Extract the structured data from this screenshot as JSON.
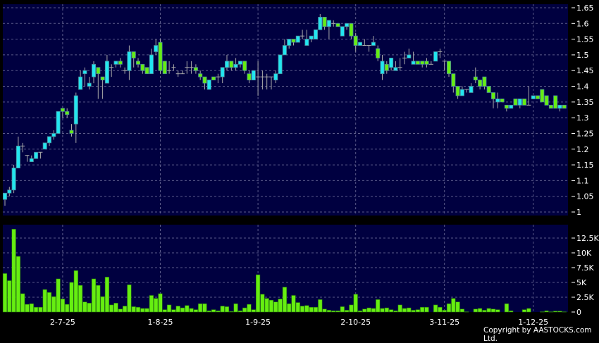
{
  "chart_data": {
    "type": "candlestick",
    "colors": {
      "up": "#22e6f0",
      "down": "#66ee11",
      "volume": "#66ee11",
      "background": "#000040",
      "grid": "#5a5a8a",
      "doji": "#aaaaaa"
    },
    "price_axis": {
      "ylim": [
        1.0,
        1.65
      ],
      "ticks": [
        "1",
        "1.05",
        "1.1",
        "1.15",
        "1.2",
        "1.25",
        "1.3",
        "1.35",
        "1.4",
        "1.45",
        "1.5",
        "1.55",
        "1.6",
        "1.65"
      ],
      "position": "right",
      "grid": true
    },
    "volume_axis": {
      "ylim": [
        0,
        14500
      ],
      "ticks": [
        {
          "value": 0,
          "label": "0"
        },
        {
          "value": 2500,
          "label": "2.5K"
        },
        {
          "value": 5000,
          "label": "5K"
        },
        {
          "value": 7500,
          "label": "7.5K"
        },
        {
          "value": 10000,
          "label": "10K"
        },
        {
          "value": 12500,
          "label": "12.5K"
        }
      ],
      "position": "right",
      "grid": true
    },
    "x_labels": [
      {
        "label": "2-7-25",
        "index": 13
      },
      {
        "label": "1-8-25",
        "index": 35
      },
      {
        "label": "1-9-25",
        "index": 57
      },
      {
        "label": "2-10-25",
        "index": 79
      },
      {
        "label": "3-11-25",
        "index": 99
      },
      {
        "label": "1-12-25",
        "index": 119
      }
    ],
    "ohlc": [
      [
        1.04,
        1.06,
        1.06,
        1.02
      ],
      [
        1.06,
        1.07,
        1.08,
        1.05
      ],
      [
        1.07,
        1.14,
        1.15,
        1.06
      ],
      [
        1.14,
        1.21,
        1.24,
        1.14
      ],
      [
        1.21,
        1.21,
        1.22,
        1.19
      ],
      [
        1.18,
        1.18,
        1.18,
        1.16
      ],
      [
        1.16,
        1.17,
        1.18,
        1.16
      ],
      [
        1.17,
        1.19,
        1.19,
        1.17
      ],
      [
        1.19,
        1.19,
        1.19,
        1.17
      ],
      [
        1.2,
        1.22,
        1.22,
        1.2
      ],
      [
        1.22,
        1.24,
        1.24,
        1.21
      ],
      [
        1.24,
        1.25,
        1.26,
        1.23
      ],
      [
        1.25,
        1.32,
        1.32,
        1.25
      ],
      [
        1.33,
        1.32,
        1.33,
        1.3
      ],
      [
        1.32,
        1.31,
        1.33,
        1.3
      ],
      [
        1.26,
        1.25,
        1.28,
        1.24
      ],
      [
        1.28,
        1.37,
        1.38,
        1.22
      ],
      [
        1.39,
        1.43,
        1.45,
        1.39
      ],
      [
        1.44,
        1.45,
        1.46,
        1.4
      ],
      [
        1.4,
        1.41,
        1.43,
        1.39
      ],
      [
        1.43,
        1.47,
        1.48,
        1.41
      ],
      [
        1.46,
        1.44,
        1.46,
        1.36
      ],
      [
        1.43,
        1.42,
        1.43,
        1.36
      ],
      [
        1.41,
        1.48,
        1.5,
        1.41
      ],
      [
        1.46,
        1.46,
        1.47,
        1.43
      ],
      [
        1.47,
        1.48,
        1.48,
        1.46
      ],
      [
        1.48,
        1.47,
        1.49,
        1.46
      ],
      [
        1.45,
        1.45,
        1.46,
        1.44
      ],
      [
        1.45,
        1.51,
        1.53,
        1.42
      ],
      [
        1.51,
        1.49,
        1.51,
        1.46
      ],
      [
        1.48,
        1.47,
        1.49,
        1.46
      ],
      [
        1.47,
        1.45,
        1.47,
        1.44
      ],
      [
        1.46,
        1.44,
        1.46,
        1.44
      ],
      [
        1.44,
        1.5,
        1.52,
        1.44
      ],
      [
        1.51,
        1.53,
        1.55,
        1.5
      ],
      [
        1.54,
        1.45,
        1.55,
        1.44
      ],
      [
        1.48,
        1.44,
        1.48,
        1.44
      ],
      [
        1.45,
        1.45,
        1.48,
        1.44
      ],
      [
        1.46,
        1.46,
        1.47,
        1.45
      ],
      [
        1.44,
        1.44,
        1.45,
        1.43
      ],
      [
        1.44,
        1.44,
        1.45,
        1.44
      ],
      [
        1.46,
        1.46,
        1.48,
        1.44
      ],
      [
        1.46,
        1.46,
        1.48,
        1.44
      ],
      [
        1.46,
        1.45,
        1.47,
        1.44
      ],
      [
        1.44,
        1.43,
        1.45,
        1.42
      ],
      [
        1.43,
        1.41,
        1.43,
        1.39
      ],
      [
        1.39,
        1.42,
        1.42,
        1.39
      ],
      [
        1.43,
        1.42,
        1.43,
        1.42
      ],
      [
        1.43,
        1.43,
        1.44,
        1.41
      ],
      [
        1.43,
        1.46,
        1.46,
        1.41
      ],
      [
        1.46,
        1.48,
        1.5,
        1.45
      ],
      [
        1.48,
        1.46,
        1.48,
        1.45
      ],
      [
        1.46,
        1.47,
        1.49,
        1.45
      ],
      [
        1.47,
        1.48,
        1.48,
        1.46
      ],
      [
        1.48,
        1.45,
        1.48,
        1.44
      ],
      [
        1.44,
        1.42,
        1.45,
        1.41
      ],
      [
        1.42,
        1.45,
        1.45,
        1.42
      ],
      [
        1.43,
        1.43,
        1.48,
        1.37
      ],
      [
        1.43,
        1.43,
        1.45,
        1.39
      ],
      [
        1.43,
        1.43,
        1.44,
        1.39
      ],
      [
        1.43,
        1.43,
        1.43,
        1.39
      ],
      [
        1.42,
        1.44,
        1.45,
        1.41
      ],
      [
        1.44,
        1.5,
        1.5,
        1.44
      ],
      [
        1.5,
        1.53,
        1.55,
        1.5
      ],
      [
        1.53,
        1.55,
        1.55,
        1.52
      ],
      [
        1.55,
        1.54,
        1.55,
        1.53
      ],
      [
        1.54,
        1.56,
        1.56,
        1.54
      ],
      [
        1.56,
        1.56,
        1.58,
        1.55
      ],
      [
        1.53,
        1.55,
        1.58,
        1.53
      ],
      [
        1.55,
        1.56,
        1.56,
        1.54
      ],
      [
        1.55,
        1.58,
        1.58,
        1.55
      ],
      [
        1.58,
        1.62,
        1.63,
        1.58
      ],
      [
        1.62,
        1.59,
        1.62,
        1.58
      ],
      [
        1.59,
        1.61,
        1.61,
        1.55
      ],
      [
        1.6,
        1.6,
        1.61,
        1.59
      ],
      [
        1.6,
        1.59,
        1.6,
        1.59
      ],
      [
        1.56,
        1.59,
        1.59,
        1.56
      ],
      [
        1.59,
        1.6,
        1.6,
        1.58
      ],
      [
        1.6,
        1.56,
        1.6,
        1.55
      ],
      [
        1.56,
        1.53,
        1.57,
        1.51
      ],
      [
        1.53,
        1.54,
        1.54,
        1.53
      ],
      [
        1.53,
        1.53,
        1.55,
        1.53
      ],
      [
        1.53,
        1.53,
        1.53,
        1.51
      ],
      [
        1.53,
        1.54,
        1.56,
        1.53
      ],
      [
        1.52,
        1.49,
        1.53,
        1.48
      ],
      [
        1.44,
        1.48,
        1.5,
        1.42
      ],
      [
        1.47,
        1.45,
        1.48,
        1.44
      ],
      [
        1.46,
        1.49,
        1.49,
        1.45
      ],
      [
        1.45,
        1.46,
        1.48,
        1.45
      ],
      [
        1.46,
        1.46,
        1.49,
        1.45
      ],
      [
        1.49,
        1.49,
        1.51,
        1.47
      ],
      [
        1.49,
        1.5,
        1.52,
        1.49
      ],
      [
        1.47,
        1.48,
        1.51,
        1.47
      ],
      [
        1.48,
        1.47,
        1.48,
        1.47
      ],
      [
        1.48,
        1.47,
        1.48,
        1.46
      ],
      [
        1.48,
        1.47,
        1.49,
        1.46
      ],
      [
        1.47,
        1.47,
        1.48,
        1.47
      ],
      [
        1.48,
        1.51,
        1.51,
        1.48
      ],
      [
        1.51,
        1.51,
        1.52,
        1.49
      ],
      [
        1.48,
        1.48,
        1.48,
        1.45
      ],
      [
        1.48,
        1.44,
        1.48,
        1.43
      ],
      [
        1.44,
        1.4,
        1.44,
        1.38
      ],
      [
        1.4,
        1.37,
        1.4,
        1.36
      ],
      [
        1.37,
        1.39,
        1.4,
        1.37
      ],
      [
        1.39,
        1.39,
        1.39,
        1.38
      ],
      [
        1.38,
        1.4,
        1.41,
        1.38
      ],
      [
        1.43,
        1.42,
        1.46,
        1.41
      ],
      [
        1.42,
        1.4,
        1.42,
        1.39
      ],
      [
        1.43,
        1.4,
        1.43,
        1.39
      ],
      [
        1.4,
        1.38,
        1.4,
        1.38
      ],
      [
        1.38,
        1.36,
        1.38,
        1.33
      ],
      [
        1.35,
        1.36,
        1.38,
        1.33
      ],
      [
        1.36,
        1.35,
        1.36,
        1.35
      ],
      [
        1.34,
        1.33,
        1.34,
        1.32
      ],
      [
        1.33,
        1.34,
        1.34,
        1.33
      ],
      [
        1.36,
        1.34,
        1.36,
        1.34
      ],
      [
        1.34,
        1.36,
        1.36,
        1.33
      ],
      [
        1.36,
        1.34,
        1.36,
        1.34
      ],
      [
        1.34,
        1.34,
        1.4,
        1.34
      ],
      [
        1.36,
        1.37,
        1.37,
        1.36
      ],
      [
        1.37,
        1.36,
        1.37,
        1.36
      ],
      [
        1.39,
        1.35,
        1.39,
        1.35
      ],
      [
        1.37,
        1.34,
        1.37,
        1.34
      ],
      [
        1.34,
        1.33,
        1.34,
        1.33
      ],
      [
        1.37,
        1.33,
        1.37,
        1.33
      ],
      [
        1.33,
        1.34,
        1.34,
        1.32
      ],
      [
        1.34,
        1.33,
        1.34,
        1.33
      ]
    ],
    "volume": [
      6500,
      5300,
      14000,
      9400,
      3100,
      1300,
      1400,
      800,
      800,
      3800,
      3300,
      2600,
      5600,
      2200,
      1300,
      5000,
      7000,
      4500,
      1700,
      1500,
      5600,
      4500,
      2600,
      5900,
      1200,
      1500,
      500,
      1000,
      4600,
      900,
      800,
      600,
      600,
      2800,
      2300,
      3100,
      400,
      1200,
      400,
      1000,
      700,
      1100,
      600,
      400,
      1400,
      1400,
      200,
      400,
      200,
      1000,
      900,
      100,
      1400,
      200,
      700,
      1300,
      400,
      6300,
      3000,
      2300,
      2000,
      1700,
      2200,
      4200,
      1400,
      2800,
      1600,
      1000,
      1100,
      800,
      800,
      2100,
      500,
      300,
      200,
      200,
      900,
      300,
      1200,
      3000,
      200,
      500,
      700,
      600,
      2100,
      600,
      700,
      400,
      200,
      1200,
      600,
      700,
      300,
      400,
      800,
      800,
      0,
      1200,
      800,
      300,
      1400,
      2300,
      1700,
      500,
      50,
      0,
      500,
      600,
      300,
      600,
      500,
      400,
      0,
      1400,
      200,
      0,
      0,
      400,
      600,
      0,
      0,
      50,
      200,
      50,
      150,
      150,
      50
    ]
  },
  "footer": {
    "copyright": "Copyright by AASTOCKS.com Ltd."
  }
}
